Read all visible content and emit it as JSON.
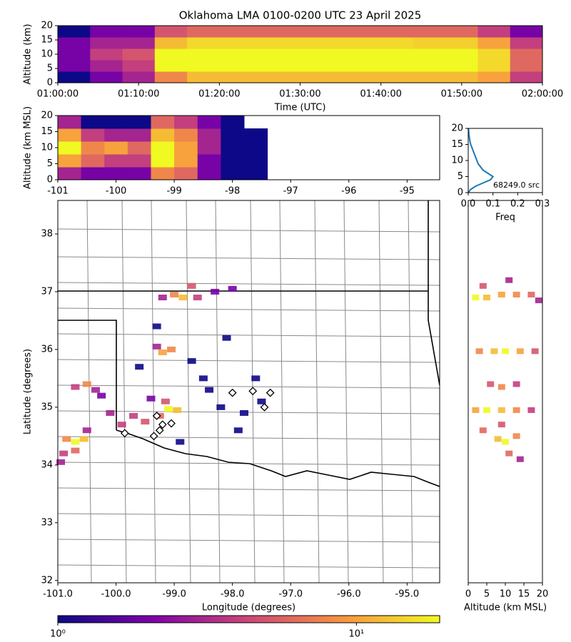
{
  "chart_data": [
    {
      "type": "hist2d",
      "title": "Oklahoma LMA 0100-0200 UTC 23 April 2025",
      "x_label": "Time (UTC)",
      "y_label": "Altitude (km)",
      "xlim": [
        0,
        60
      ],
      "xticks": [
        {
          "value": 0,
          "label": "01:00:00"
        },
        {
          "value": 10,
          "label": "01:10:00"
        },
        {
          "value": 20,
          "label": "01:20:00"
        },
        {
          "value": 30,
          "label": "01:30:00"
        },
        {
          "value": 40,
          "label": "01:40:00"
        },
        {
          "value": 50,
          "label": "01:50:00"
        },
        {
          "value": 60,
          "label": "02:00:00"
        }
      ],
      "ylim": [
        0,
        20
      ],
      "yticks": [
        0,
        5,
        10,
        15,
        20
      ],
      "xbins": [
        0,
        4,
        8,
        12,
        16,
        20,
        24,
        28,
        32,
        36,
        40,
        44,
        48,
        52,
        56,
        60
      ],
      "ybins": [
        0,
        4,
        8,
        12,
        16,
        20
      ],
      "values": [
        [
          1,
          2,
          3,
          8,
          12,
          12,
          12,
          12,
          12,
          12,
          12,
          12,
          12,
          10,
          4
        ],
        [
          2,
          3,
          4,
          19,
          19,
          19,
          19,
          19,
          19,
          19,
          19,
          19,
          19,
          15,
          6
        ],
        [
          2,
          4,
          5,
          19,
          19,
          19,
          19,
          19,
          19,
          19,
          19,
          19,
          19,
          15,
          6
        ],
        [
          2,
          3,
          3,
          12,
          15,
          15,
          15,
          15,
          15,
          15,
          15,
          14,
          14,
          10,
          4
        ],
        [
          1,
          2,
          2,
          5,
          6,
          6,
          6,
          6,
          6,
          6,
          6,
          6,
          6,
          4,
          2
        ]
      ]
    },
    {
      "type": "hist2d",
      "y_label": "Altitude (km MSL)",
      "xlim": [
        -101.0,
        -94.44
      ],
      "xticks": [
        -101,
        -100,
        -99,
        -98,
        -97,
        -96,
        -95
      ],
      "ylim": [
        0,
        20
      ],
      "yticks": [
        0,
        5,
        10,
        15,
        20
      ],
      "xbins": [
        -101.0,
        -100.6,
        -100.2,
        -99.8,
        -99.4,
        -99.0,
        -98.6,
        -98.2,
        -97.8,
        -97.4
      ],
      "ybins": [
        0,
        4,
        8,
        12,
        16,
        20
      ],
      "values": [
        [
          3,
          2,
          2,
          2,
          8,
          6,
          2,
          1,
          1
        ],
        [
          10,
          6,
          4,
          4,
          19,
          10,
          2,
          1,
          1
        ],
        [
          19,
          8,
          10,
          6,
          19,
          10,
          3,
          1,
          1
        ],
        [
          10,
          4,
          3,
          3,
          12,
          8,
          3,
          1,
          1
        ],
        [
          3,
          1,
          1,
          1,
          6,
          4,
          2,
          1,
          null
        ]
      ]
    },
    {
      "type": "line",
      "x_label": "Freq",
      "annotation": "68249.0 src",
      "color": "#1f77b4",
      "xlim": [
        0,
        0.3
      ],
      "xticks": [
        {
          "value": 0,
          "label": "0.0"
        },
        0.1,
        0.2,
        0.3
      ],
      "ylim": [
        0,
        20
      ],
      "yticks": [
        0,
        5,
        10,
        15,
        20
      ],
      "y": [
        0,
        1,
        2,
        3,
        4,
        5,
        6,
        7,
        8,
        9,
        10,
        11,
        12,
        13,
        14,
        15,
        16,
        17,
        18,
        19,
        20
      ],
      "values": [
        0,
        0.01,
        0.03,
        0.06,
        0.09,
        0.1,
        0.08,
        0.06,
        0.05,
        0.04,
        0.035,
        0.03,
        0.025,
        0.02,
        0.015,
        0.01,
        0.007,
        0.005,
        0.003,
        0.002,
        0.001
      ]
    },
    {
      "type": "map",
      "x_label": "Longitude (degrees)",
      "y_label": "Latitude (degrees)",
      "xlim": [
        -101.0,
        -94.44
      ],
      "xticks": [
        {
          "value": -101,
          "label": "-101.0"
        },
        {
          "value": -100,
          "label": "-100.0"
        },
        {
          "value": -99,
          "label": "-99.0"
        },
        {
          "value": -98,
          "label": "-98.0"
        },
        {
          "value": -97,
          "label": "-97.0"
        },
        {
          "value": -96,
          "label": "-96.0"
        },
        {
          "value": -95,
          "label": "-95.0"
        }
      ],
      "ylim": [
        31.96,
        38.58
      ],
      "yticks": [
        32,
        33,
        34,
        35,
        36,
        37,
        38
      ],
      "x": [
        -100.85,
        -100.7,
        -100.55,
        -100.7,
        -100.9,
        -100.5,
        -100.95,
        -100.7,
        -100.5,
        -100.35,
        -100.25,
        -99.2,
        -99.05,
        -99.3,
        -99.1,
        -98.95,
        -99.25,
        -99.15,
        -99.5,
        -99.7,
        -99.9,
        -100.1,
        -99.4,
        -99.0,
        -98.85,
        -98.7,
        -98.6,
        -99.2,
        -98.3,
        -98.0,
        -98.5,
        -98.2,
        -97.8,
        -98.7,
        -97.6,
        -99.6,
        -98.1,
        -97.9,
        -98.9,
        -99.3,
        -98.4,
        -97.5
      ],
      "y": [
        34.45,
        34.4,
        34.45,
        34.25,
        34.2,
        34.6,
        34.05,
        35.35,
        35.4,
        35.3,
        35.2,
        35.95,
        36.0,
        36.05,
        34.97,
        34.95,
        34.85,
        35.1,
        34.75,
        34.85,
        34.7,
        34.9,
        35.15,
        36.95,
        36.9,
        37.1,
        36.9,
        36.9,
        37.0,
        37.05,
        35.5,
        35.0,
        34.9,
        35.8,
        35.5,
        35.7,
        36.2,
        34.6,
        34.4,
        36.4,
        35.3,
        35.1
      ],
      "values": [
        8,
        19,
        12,
        6,
        4,
        3,
        3,
        4,
        8,
        3,
        2,
        10,
        8,
        3,
        19,
        12,
        6,
        5,
        5,
        4,
        4,
        3,
        2,
        8,
        12,
        5,
        4,
        3,
        2,
        2,
        1,
        1,
        1,
        1,
        1,
        1,
        1,
        1,
        1,
        1,
        1,
        1
      ],
      "stations": {
        "x": [
          -99.3,
          -99.2,
          -99.05,
          -99.35,
          -99.25,
          -98.0,
          -97.65,
          -97.35,
          -97.45,
          -99.85
        ],
        "y": [
          34.85,
          34.7,
          34.72,
          34.5,
          34.6,
          35.25,
          35.28,
          35.25,
          35.0,
          34.55
        ]
      }
    },
    {
      "type": "cells",
      "x_label": "Altitude (km MSL)",
      "xlim": [
        0,
        20
      ],
      "xticks": [
        0,
        5,
        10,
        15,
        20
      ],
      "ylim": [
        31.96,
        38.58
      ],
      "x": [
        2,
        5,
        9,
        13,
        17,
        4,
        11,
        19,
        3,
        7,
        10,
        14,
        18,
        6,
        9,
        13,
        2,
        5,
        9,
        13,
        17,
        4,
        8,
        10,
        13,
        11,
        14,
        9
      ],
      "y": [
        36.9,
        36.9,
        36.95,
        36.95,
        36.95,
        37.1,
        37.2,
        36.85,
        35.97,
        35.97,
        35.97,
        35.97,
        35.97,
        35.4,
        35.35,
        35.4,
        34.95,
        34.95,
        34.95,
        34.95,
        34.95,
        34.6,
        34.45,
        34.4,
        34.5,
        34.2,
        34.1,
        34.7
      ],
      "values": [
        19,
        12,
        10,
        8,
        6,
        5,
        3,
        3,
        8,
        12,
        19,
        10,
        5,
        5,
        8,
        4,
        10,
        19,
        12,
        8,
        4,
        6,
        12,
        19,
        8,
        6,
        3,
        5
      ]
    },
    {
      "type": "colorbar",
      "log": true,
      "lim": [
        1,
        19
      ],
      "ticks": [
        {
          "value": 1,
          "label": "10⁰"
        },
        {
          "value": 10,
          "label": "10¹"
        }
      ]
    }
  ]
}
